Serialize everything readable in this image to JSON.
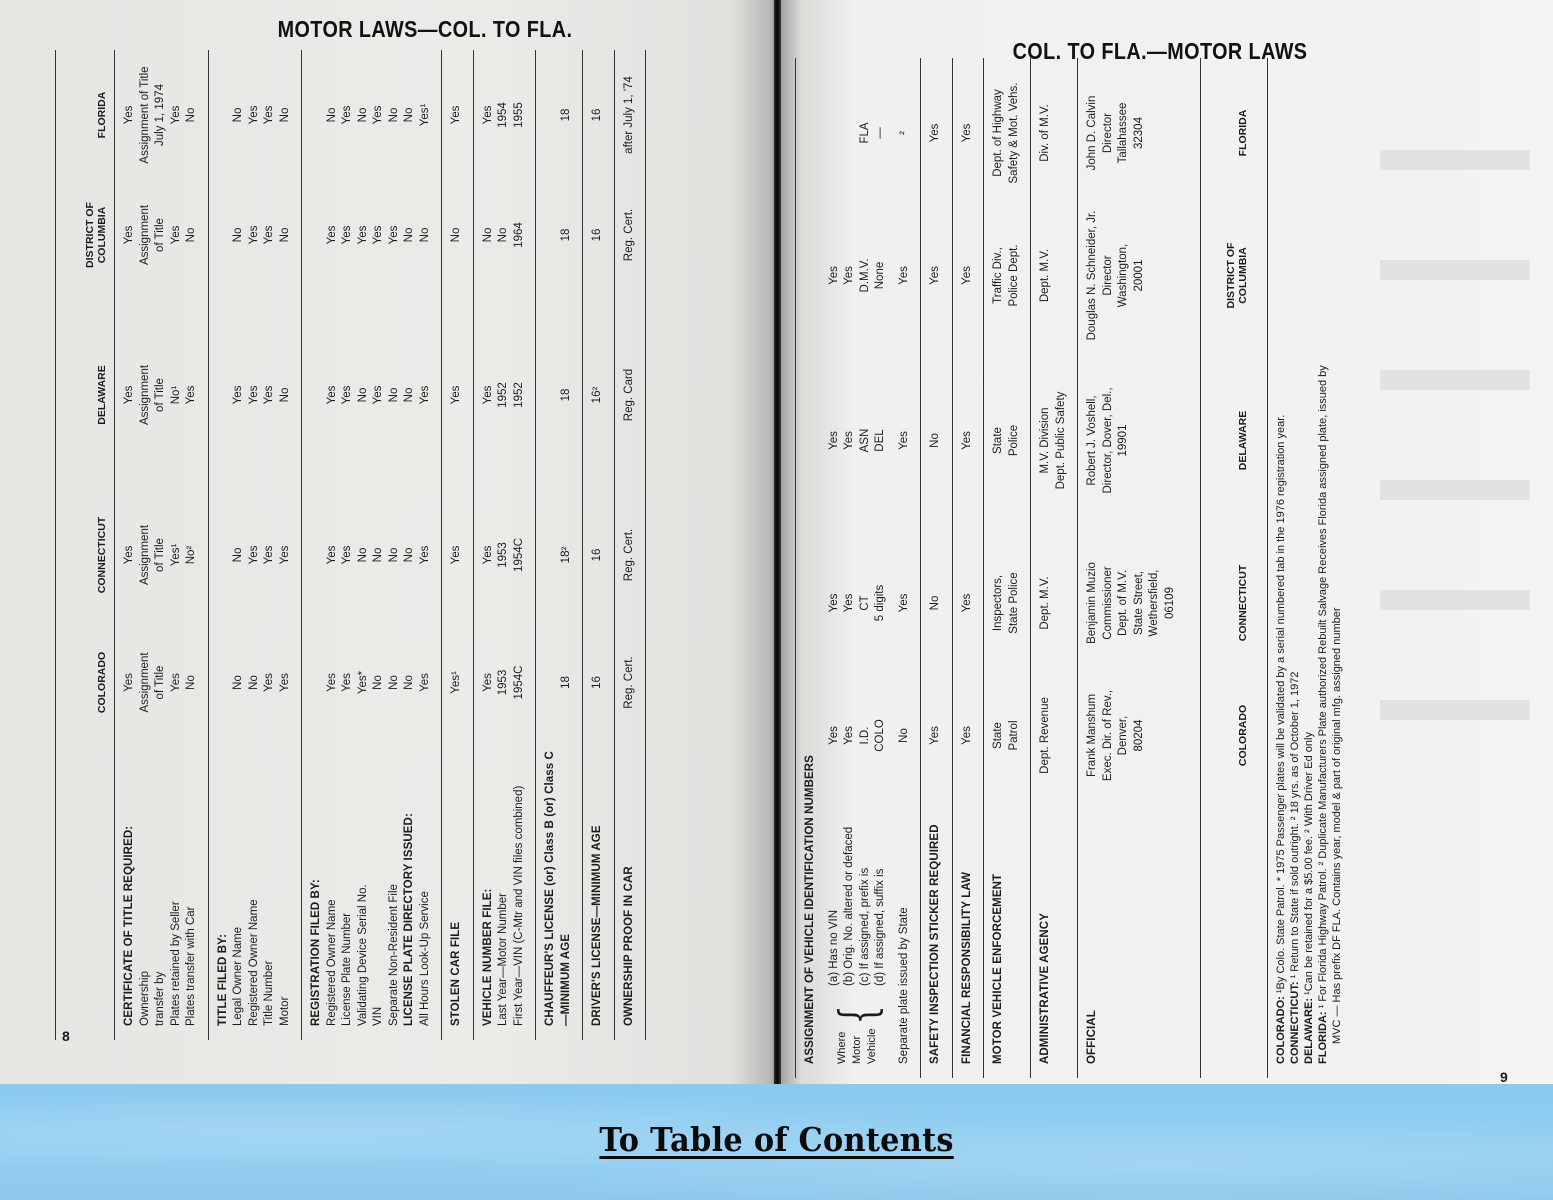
{
  "left_page": {
    "title": "MOTOR LAWS—COL. TO FLA.",
    "page_number": "8",
    "headers": [
      "COLORADO",
      "CONNECTICUT",
      "DELAWARE",
      "DISTRICT OF\nCOLUMBIA",
      "FLORIDA"
    ],
    "sections": [
      {
        "rows": [
          {
            "label": "CERTIFICATE OF TITLE REQUIRED:",
            "style": "head",
            "values": [
              "Yes",
              "Yes",
              "Yes",
              "Yes",
              "Yes"
            ]
          },
          {
            "label": "Ownership\n      transfer by",
            "style": "sub",
            "values": [
              "Assignment\nof Title",
              "Assignment\nof Title",
              "Assignment\nof Title",
              "Assignment\nof Title",
              "Assignment of Title\nJuly 1, 1974"
            ]
          },
          {
            "label": "Plates retained by Seller",
            "style": "sub",
            "values": [
              "Yes",
              "Yes¹",
              "No¹",
              "Yes",
              "Yes"
            ]
          },
          {
            "label": "Plates transfer with Car",
            "style": "sub",
            "values": [
              "No",
              "No²",
              "Yes",
              "No",
              "No"
            ]
          }
        ]
      },
      {
        "rows": [
          {
            "label": "TITLE FILED BY:",
            "style": "head",
            "values": [
              "",
              "",
              "",
              "",
              ""
            ]
          },
          {
            "label": "Legal Owner Name",
            "style": "sub",
            "values": [
              "No",
              "No",
              "Yes",
              "No",
              "No"
            ]
          },
          {
            "label": "Registered Owner Name",
            "style": "sub",
            "values": [
              "No",
              "Yes",
              "Yes",
              "Yes",
              "Yes"
            ]
          },
          {
            "label": "Title Number",
            "style": "sub",
            "values": [
              "Yes",
              "Yes",
              "Yes",
              "Yes",
              "Yes"
            ]
          },
          {
            "label": "Motor",
            "style": "sub",
            "values": [
              "Yes",
              "Yes",
              "No",
              "No",
              "No"
            ]
          }
        ]
      },
      {
        "rows": [
          {
            "label": "REGISTRATION FILED BY:",
            "style": "head",
            "values": [
              "",
              "",
              "",
              "",
              ""
            ]
          },
          {
            "label": "Registered Owner Name",
            "style": "sub",
            "values": [
              "Yes",
              "Yes",
              "Yes",
              "Yes",
              "No"
            ]
          },
          {
            "label": "License Plate Number",
            "style": "sub",
            "values": [
              "Yes",
              "Yes",
              "Yes",
              "Yes",
              "Yes"
            ]
          },
          {
            "label": "Validating Device Serial No.",
            "style": "sub",
            "values": [
              "Yes*",
              "No",
              "No",
              "Yes",
              "No"
            ]
          },
          {
            "label": "VIN",
            "style": "sub",
            "values": [
              "No",
              "No",
              "Yes",
              "Yes",
              "Yes"
            ]
          },
          {
            "label": "Separate Non-Resident File",
            "style": "sub",
            "values": [
              "No",
              "No",
              "No",
              "Yes",
              "No"
            ]
          },
          {
            "label": "LICENSE PLATE DIRECTORY ISSUED:",
            "style": "head",
            "values": [
              "No",
              "No",
              "No",
              "No",
              "No"
            ]
          },
          {
            "label": "All Hours Look-Up Service",
            "style": "sub",
            "values": [
              "Yes",
              "Yes",
              "Yes",
              "No",
              "Yes¹"
            ]
          }
        ]
      },
      {
        "rows": [
          {
            "label": "STOLEN CAR FILE",
            "style": "head",
            "values": [
              "Yes¹",
              "Yes",
              "Yes",
              "No",
              "Yes"
            ]
          }
        ]
      },
      {
        "rows": [
          {
            "label": "VEHICLE NUMBER FILE:",
            "style": "head",
            "values": [
              "Yes",
              "Yes",
              "Yes",
              "No",
              "Yes"
            ]
          },
          {
            "label": "Last Year—Motor Number",
            "style": "sub",
            "values": [
              "1953",
              "1953",
              "1952",
              "No",
              "1954"
            ]
          },
          {
            "label": "First Year—VIN (C-Mtr and VIN files combined)",
            "style": "sub",
            "values": [
              "1954C",
              "1954C",
              "1952",
              "1964",
              "1955"
            ]
          }
        ]
      },
      {
        "rows": [
          {
            "label": "CHAUFFEUR'S LICENSE (or) Class B (or) Class C\n    —MINIMUM AGE",
            "style": "head",
            "values": [
              "\n18",
              "\n18²",
              "\n18",
              "\n18",
              "\n18"
            ]
          }
        ]
      },
      {
        "rows": [
          {
            "label": "DRIVER'S LICENSE—MINIMUM AGE",
            "style": "head",
            "values": [
              "16",
              "16",
              "16²",
              "16",
              "16"
            ]
          }
        ]
      },
      {
        "rows": [
          {
            "label": "OWNERSHIP PROOF IN CAR",
            "style": "head",
            "values": [
              "Reg. Cert.",
              "Reg. Cert.",
              "Reg. Card",
              "Reg. Cert.",
              "after July 1, '74"
            ]
          }
        ]
      }
    ]
  },
  "right_page": {
    "title": "COL. TO FLA.—MOTOR LAWS",
    "page_number": "9",
    "bracket_labels": "Where\nMotor\nVehicle",
    "sections": [
      {
        "bracket": true,
        "rows": [
          {
            "label": "ASSIGNMENT OF VEHICLE IDENTIFICATION NUMBERS",
            "style": "head",
            "values": [
              "",
              "",
              "",
              "",
              ""
            ]
          },
          {
            "label": "(a) Has no VIN",
            "style": "br",
            "values": [
              "Yes",
              "Yes",
              "Yes",
              "Yes",
              ""
            ]
          },
          {
            "label": "(b) Orig. No. altered or defaced",
            "style": "br",
            "values": [
              "Yes",
              "Yes",
              "Yes",
              "Yes",
              ""
            ]
          },
          {
            "label": "(c) If assigned, prefix is",
            "style": "br",
            "values": [
              "I.D.",
              "CT",
              "ASN",
              "D.M.V.",
              "FLA"
            ]
          },
          {
            "label": "(d) If assigned, suffix is",
            "style": "br",
            "values": [
              "COLO",
              "5 digits",
              "DEL",
              "None",
              "—"
            ]
          },
          {
            "label": "Separate plate issued by State",
            "style": "sub",
            "values": [
              "No",
              "Yes",
              "Yes",
              "Yes",
              "²"
            ]
          }
        ]
      },
      {
        "rows": [
          {
            "label": "SAFETY INSPECTION STICKER REQUIRED",
            "style": "head",
            "values": [
              "Yes",
              "No",
              "No",
              "Yes",
              "Yes"
            ]
          }
        ]
      },
      {
        "rows": [
          {
            "label": "FINANCIAL RESPONSIBILITY LAW",
            "style": "head",
            "values": [
              "Yes",
              "Yes",
              "Yes",
              "Yes",
              "Yes"
            ]
          }
        ]
      },
      {
        "rows": [
          {
            "label": "MOTOR VEHICLE ENFORCEMENT",
            "style": "head",
            "values": [
              "State\nPatrol",
              "Inspectors,\nState Police",
              "State\nPolice",
              "Traffic Div.,\nPolice Dept.",
              "Dept. of Highway\nSafety & Mot. Vehs."
            ]
          }
        ]
      },
      {
        "rows": [
          {
            "label": "ADMINISTRATIVE AGENCY",
            "style": "head",
            "values": [
              "Dept. Revenue",
              "Dept. M.V.",
              "M.V. Division\nDept. Public Safety",
              "Dept. M.V.",
              "Div. of M.V."
            ]
          }
        ]
      },
      {
        "rows": [
          {
            "label": "OFFICIAL",
            "style": "head",
            "values": [
              "Frank Manshum\nExec. Dir. of Rev.,\nDenver,\n80204",
              "Benjamin Muzio\nCommissioner\nDept. of M.V.\nState Street,\nWethersfield,\n06109",
              "Robert J. Voshell,\nDirector, Dover, Del.,\n19901",
              "Douglas N. Schneider, Jr.\nDirector\nWashington,\n20001",
              "John D. Calvin\nDirector\nTallahassee\n32304"
            ]
          }
        ]
      },
      {
        "footer_names": true,
        "rows": [
          {
            "label": "",
            "style": "head",
            "values": [
              "COLORADO",
              "CONNECTICUT",
              "DELAWARE",
              "DISTRICT OF\nCOLUMBIA",
              "FLORIDA"
            ]
          }
        ]
      }
    ],
    "footnotes": [
      {
        "state": "COLORADO:",
        "text": " ¹By Colo. State Patrol.  * 1975 Passenger plates will be validated by a serial numbered tab in the 1976 registration year."
      },
      {
        "state": "CONNECTICUT:",
        "text": " ¹ Return to State if sold outright.  ² 18 yrs. as of October 1, 1972"
      },
      {
        "state": "DELAWARE:",
        "text": " ¹Can be retained for a $5.00 fee.  ² With Driver Ed only"
      },
      {
        "state": "FLORIDA:",
        "text": " ¹ For Florida Highway Patrol.  ² Duplicate Manufacturers Plate authorized Rebuilt Salvage Receives Florida assigned plate, issued by"
      },
      {
        "state": "",
        "text": "MVC — Has prefix DF FLA. Contains year, model & part of original mfg. assigned number"
      }
    ]
  },
  "footer": {
    "link_label": "To Table of Contents",
    "band_color": "#8fcdf0"
  }
}
